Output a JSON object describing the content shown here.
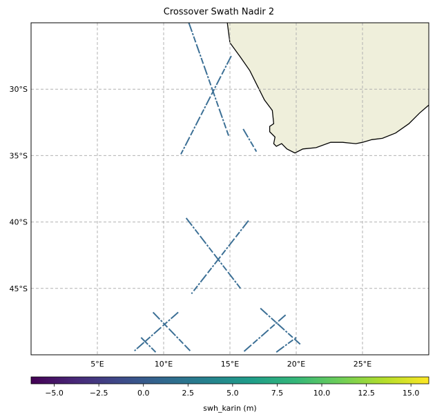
{
  "title": "Crossover Swath Nadir 2",
  "colors": {
    "land": "#efefdb",
    "coast": "#000000",
    "swath": "#3b6f95",
    "frame": "#000000"
  },
  "map": {
    "lon_range": [
      0,
      30
    ],
    "lat_range": [
      -50,
      -25
    ],
    "lon_ticks": [
      {
        "value": 5,
        "label": "5°E"
      },
      {
        "value": 10,
        "label": "10°E"
      },
      {
        "value": 15,
        "label": "15°E"
      },
      {
        "value": 20,
        "label": "20°E"
      },
      {
        "value": 25,
        "label": "25°E"
      }
    ],
    "lat_ticks": [
      {
        "value": -30,
        "label": "30°S"
      },
      {
        "value": -35,
        "label": "35°S"
      },
      {
        "value": -40,
        "label": "40°S"
      },
      {
        "value": -45,
        "label": "45°S"
      }
    ],
    "grid": true,
    "coastline": [
      [
        14.8,
        -25
      ],
      [
        15.0,
        -26.5
      ],
      [
        15.8,
        -27.6
      ],
      [
        16.5,
        -28.6
      ],
      [
        17.1,
        -29.8
      ],
      [
        17.6,
        -30.8
      ],
      [
        18.2,
        -31.6
      ],
      [
        18.3,
        -32.6
      ],
      [
        18.0,
        -32.8
      ],
      [
        18.0,
        -33.2
      ],
      [
        18.4,
        -33.6
      ],
      [
        18.3,
        -34.1
      ],
      [
        18.5,
        -34.3
      ],
      [
        18.9,
        -34.1
      ],
      [
        19.3,
        -34.5
      ],
      [
        19.9,
        -34.8
      ],
      [
        20.5,
        -34.5
      ],
      [
        21.5,
        -34.4
      ],
      [
        22.6,
        -34.0
      ],
      [
        23.5,
        -34.0
      ],
      [
        24.5,
        -34.1
      ],
      [
        25.0,
        -34.0
      ],
      [
        25.7,
        -33.8
      ],
      [
        26.5,
        -33.7
      ],
      [
        27.5,
        -33.3
      ],
      [
        28.5,
        -32.6
      ],
      [
        29.3,
        -31.8
      ],
      [
        30.0,
        -31.2
      ]
    ],
    "swath_tracks": [
      [
        [
          11.9,
          -25.0
        ],
        [
          14.9,
          -33.5
        ]
      ],
      [
        [
          15.1,
          -27.5
        ],
        [
          11.3,
          -34.9
        ]
      ],
      [
        [
          16.0,
          -33.0
        ],
        [
          17.0,
          -34.7
        ]
      ],
      [
        [
          11.7,
          -39.7
        ],
        [
          15.8,
          -45.0
        ]
      ],
      [
        [
          16.4,
          -39.9
        ],
        [
          12.1,
          -45.4
        ]
      ],
      [
        [
          9.2,
          -46.8
        ],
        [
          12.0,
          -49.7
        ]
      ],
      [
        [
          11.1,
          -46.8
        ],
        [
          7.8,
          -49.7
        ]
      ],
      [
        [
          8.3,
          -48.7
        ],
        [
          9.4,
          -49.8
        ]
      ],
      [
        [
          17.3,
          -46.5
        ],
        [
          20.3,
          -49.2
        ]
      ],
      [
        [
          19.2,
          -47.0
        ],
        [
          16.0,
          -49.8
        ]
      ],
      [
        [
          18.5,
          -49.8
        ],
        [
          20.0,
          -48.7
        ]
      ]
    ]
  },
  "colorbar": {
    "label": "swh_karin (m)",
    "range": [
      -6.3,
      16.0
    ],
    "colormap": [
      "#440154",
      "#482878",
      "#3e4a89",
      "#31688e",
      "#26828e",
      "#1f9e89",
      "#35b779",
      "#6ece58",
      "#b5de2b",
      "#fde725"
    ],
    "ticks": [
      {
        "value": -5.0,
        "label": "−5.0"
      },
      {
        "value": -2.5,
        "label": "−2.5"
      },
      {
        "value": 0.0,
        "label": "0.0"
      },
      {
        "value": 2.5,
        "label": "2.5"
      },
      {
        "value": 5.0,
        "label": "5.0"
      },
      {
        "value": 7.5,
        "label": "7.5"
      },
      {
        "value": 10.0,
        "label": "10.0"
      },
      {
        "value": 12.5,
        "label": "12.5"
      },
      {
        "value": 15.0,
        "label": "15.0"
      }
    ]
  }
}
